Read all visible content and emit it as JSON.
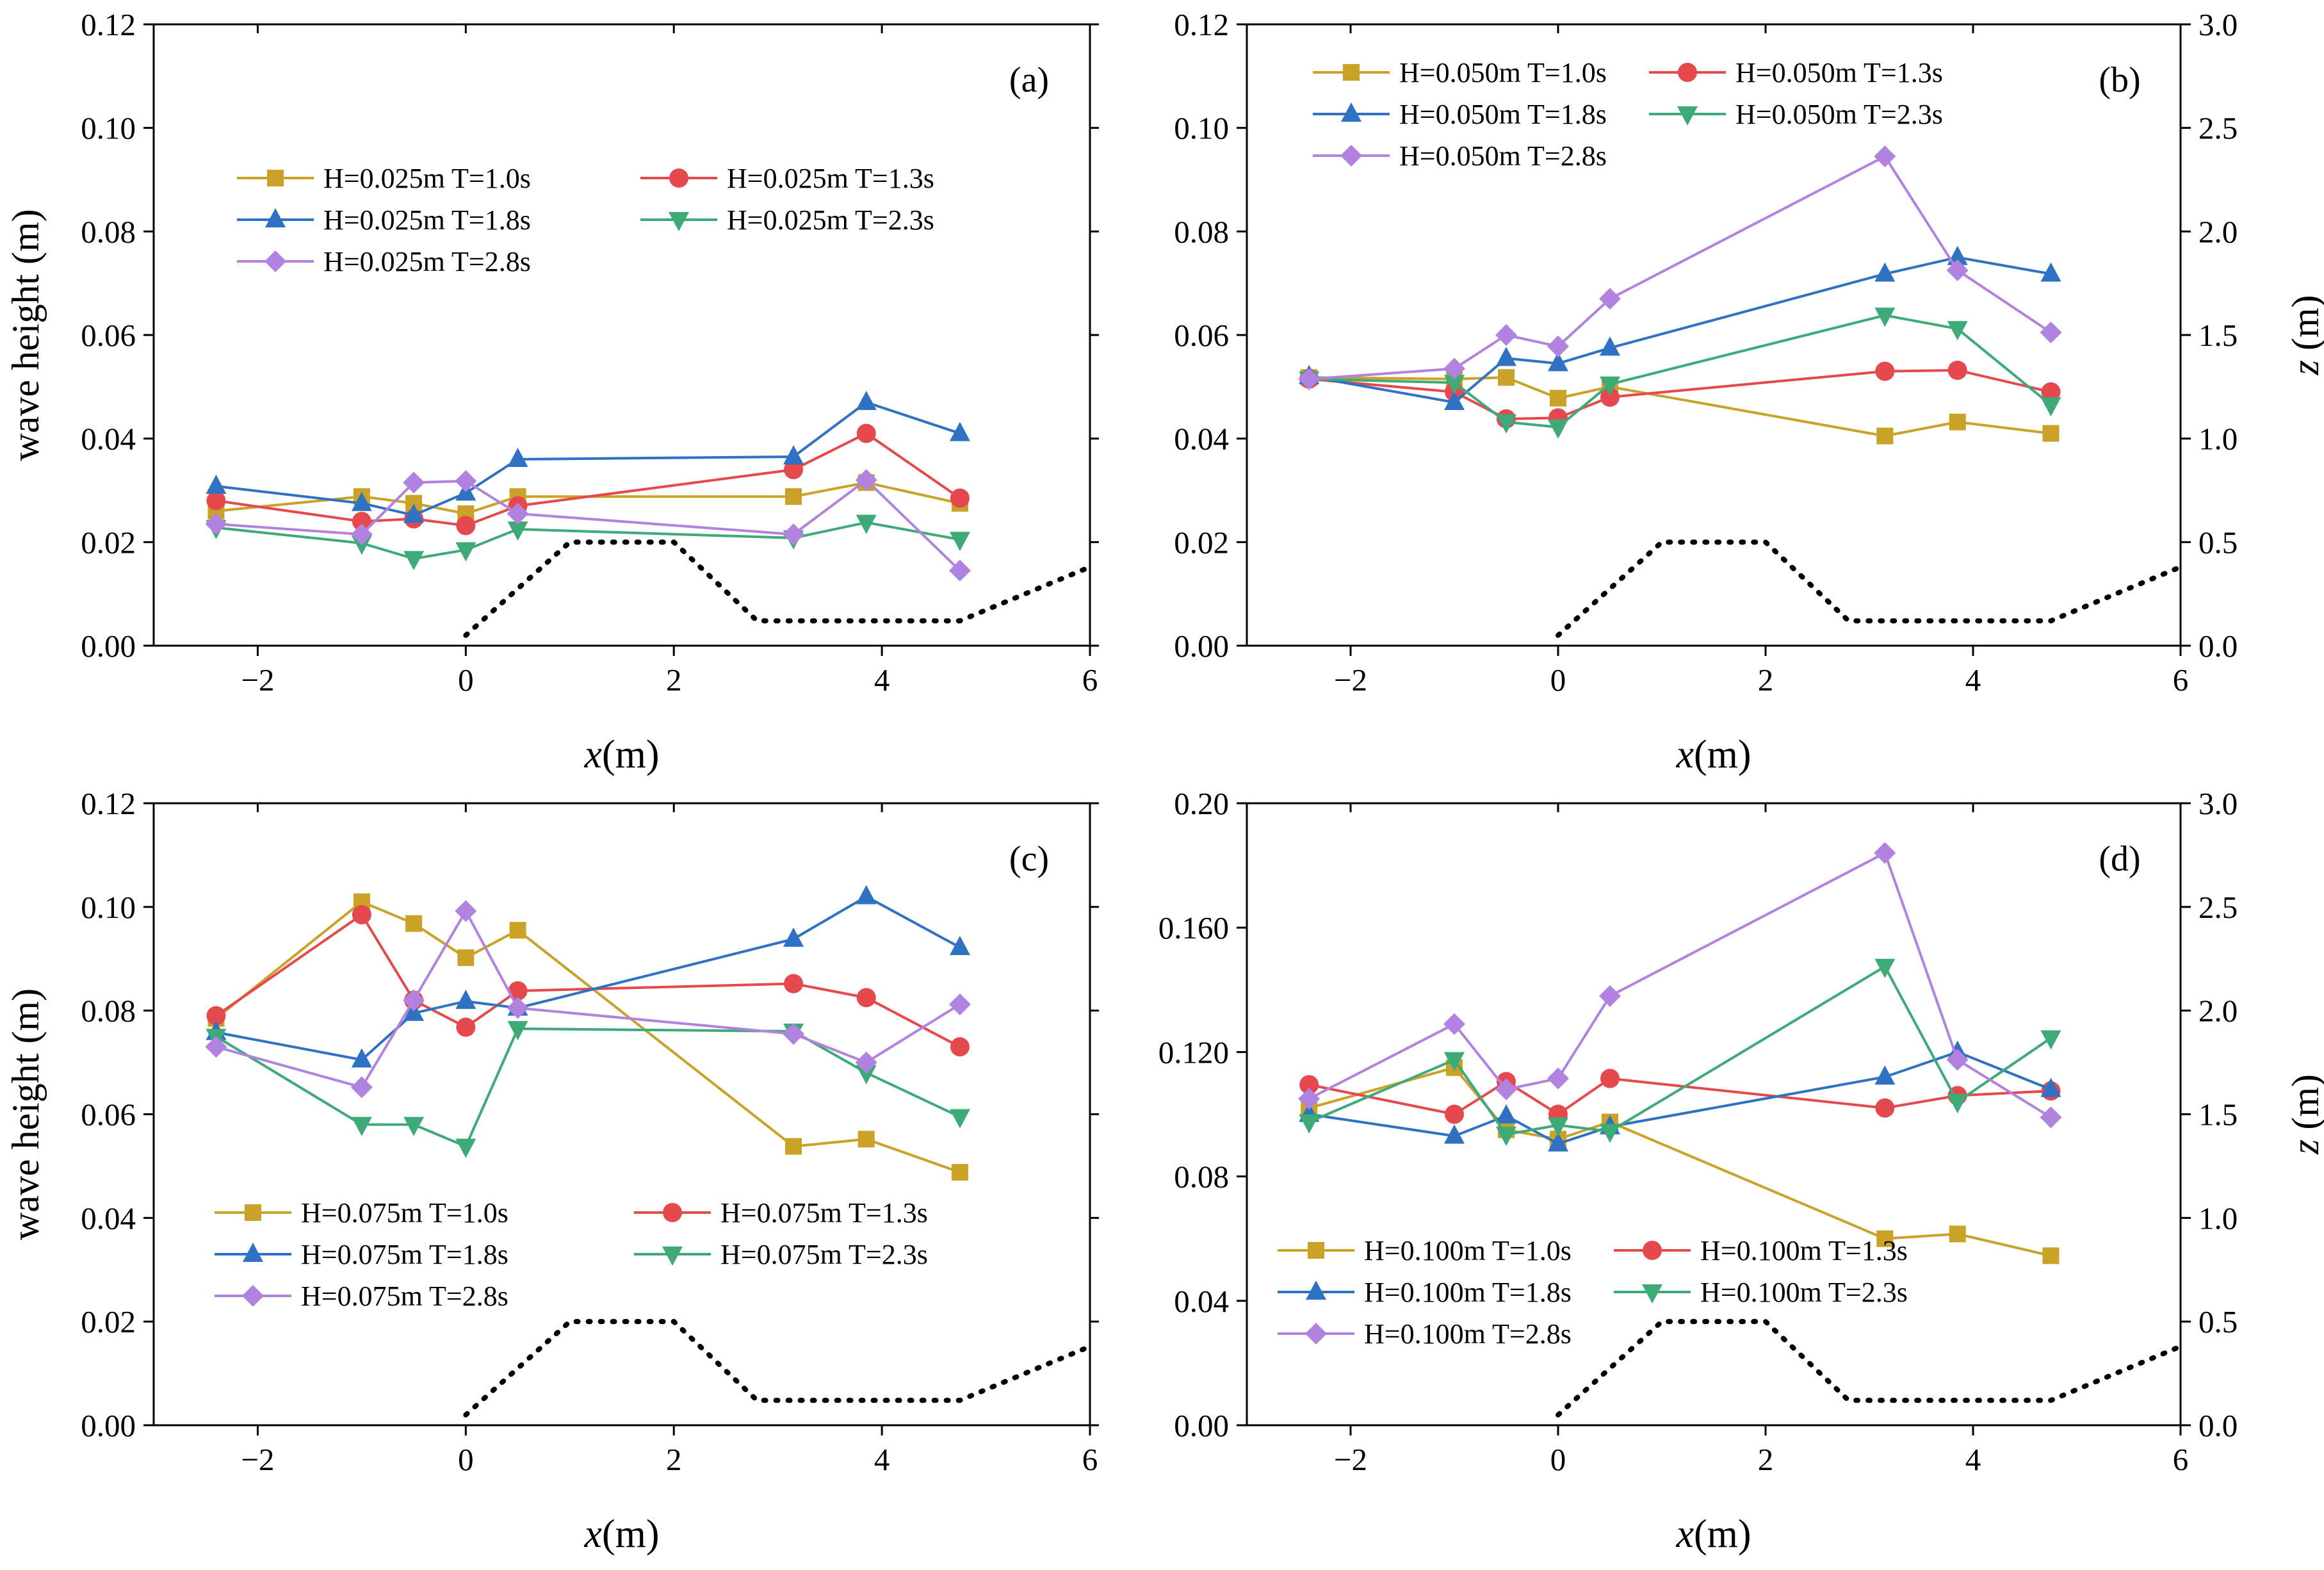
{
  "figure": {
    "x_symbol": "x",
    "x_unit": "(m)",
    "y_label": "wave height (m)",
    "z_symbol": "z",
    "z_unit": " (m)",
    "colors": {
      "T=1.0s": "#C9A227",
      "T=1.3s": "#E5484D",
      "T=1.8s": "#2F72C4",
      "T=2.3s": "#3DAA78",
      "T=2.8s": "#B282E0",
      "bathymetry": "#000000"
    }
  },
  "chart_data": [
    {
      "type": "line",
      "panel_label": "(a)",
      "x_tick_labels": [
        "−2",
        "0",
        "2",
        "4",
        "6"
      ],
      "xlim": [
        -3,
        6
      ],
      "ylim": [
        0,
        0.12
      ],
      "y_tick_labels": [
        "0.00",
        "0.02",
        "0.04",
        "0.06",
        "0.08",
        "0.10",
        "0.12"
      ],
      "right_axis": null,
      "legend_position": "upper-left",
      "series": [
        {
          "name": "H=0.025m T=1.0s",
          "marker": "square",
          "x": [
            -2.4,
            -1.0,
            -0.5,
            0.0,
            0.5,
            3.15,
            3.85,
            4.75
          ],
          "y": [
            0.026,
            0.0288,
            0.0275,
            0.0255,
            0.0288,
            0.0288,
            0.0315,
            0.0275
          ]
        },
        {
          "name": "H=0.025m T=1.3s",
          "marker": "circle",
          "x": [
            -2.4,
            -1.0,
            -0.5,
            0.0,
            0.5,
            3.15,
            3.85,
            4.75
          ],
          "y": [
            0.028,
            0.024,
            0.0245,
            0.0232,
            0.027,
            0.034,
            0.041,
            0.0285
          ]
        },
        {
          "name": "H=0.025m T=1.8s",
          "marker": "triangle-up",
          "x": [
            -2.4,
            -1.0,
            -0.5,
            0.0,
            0.5,
            3.15,
            3.85,
            4.75
          ],
          "y": [
            0.0308,
            0.0275,
            0.0252,
            0.0295,
            0.036,
            0.0365,
            0.047,
            0.041
          ]
        },
        {
          "name": "H=0.025m T=2.3s",
          "marker": "triangle-down",
          "x": [
            -2.4,
            -1.0,
            -0.5,
            0.0,
            0.5,
            3.15,
            3.85,
            4.75
          ],
          "y": [
            0.0228,
            0.0198,
            0.0168,
            0.0185,
            0.0225,
            0.0208,
            0.0238,
            0.0205
          ]
        },
        {
          "name": "H=0.025m T=2.8s",
          "marker": "diamond",
          "x": [
            -2.4,
            -1.0,
            -0.5,
            0.0,
            0.5,
            3.15,
            3.85,
            4.75
          ],
          "y": [
            0.0235,
            0.0215,
            0.0315,
            0.0318,
            0.0255,
            0.0215,
            0.032,
            0.0145
          ]
        }
      ]
    },
    {
      "type": "line",
      "panel_label": "(b)",
      "x_tick_labels": [
        "−2",
        "0",
        "2",
        "4",
        "6"
      ],
      "xlim": [
        -3,
        6
      ],
      "ylim": [
        0,
        0.12
      ],
      "y_tick_labels": [
        "0.00",
        "0.02",
        "0.04",
        "0.06",
        "0.08",
        "0.10",
        "0.12"
      ],
      "right_axis": {
        "label": "z (m)",
        "ylim": [
          0,
          3.0
        ],
        "tick_labels": [
          "0.0",
          "0.5",
          "1.0",
          "1.5",
          "2.0",
          "2.5",
          "3.0"
        ]
      },
      "legend_position": "top-left",
      "series": [
        {
          "name": "H=0.050m T=1.0s",
          "marker": "square",
          "x": [
            -2.4,
            -1.0,
            -0.5,
            0.0,
            0.5,
            3.15,
            3.85,
            4.75
          ],
          "y": [
            0.0518,
            0.0515,
            0.0518,
            0.0478,
            0.05,
            0.0405,
            0.0432,
            0.041
          ]
        },
        {
          "name": "H=0.050m T=1.3s",
          "marker": "circle",
          "x": [
            -2.4,
            -1.0,
            -0.5,
            0.0,
            0.5,
            3.15,
            3.85,
            4.75
          ],
          "y": [
            0.0515,
            0.049,
            0.0438,
            0.044,
            0.048,
            0.053,
            0.0532,
            0.049
          ]
        },
        {
          "name": "H=0.050m T=1.8s",
          "marker": "triangle-up",
          "x": [
            -2.4,
            -1.0,
            -0.5,
            0.0,
            0.5,
            3.15,
            3.85,
            4.75
          ],
          "y": [
            0.052,
            0.047,
            0.0555,
            0.0545,
            0.0575,
            0.0718,
            0.075,
            0.0718
          ]
        },
        {
          "name": "H=0.050m T=2.3s",
          "marker": "triangle-down",
          "x": [
            -2.4,
            -1.0,
            -0.5,
            0.0,
            0.5,
            3.15,
            3.85,
            4.75
          ],
          "y": [
            0.0515,
            0.0508,
            0.0432,
            0.0422,
            0.0505,
            0.0638,
            0.0612,
            0.0465
          ]
        },
        {
          "name": "H=0.050m T=2.8s",
          "marker": "diamond",
          "x": [
            -2.4,
            -1.0,
            -0.5,
            0.0,
            0.5,
            3.15,
            3.85,
            4.75
          ],
          "y": [
            0.0515,
            0.0535,
            0.06,
            0.0578,
            0.067,
            0.0945,
            0.0725,
            0.0605
          ]
        }
      ]
    },
    {
      "type": "line",
      "panel_label": "(c)",
      "x_tick_labels": [
        "−2",
        "0",
        "2",
        "4",
        "6"
      ],
      "xlim": [
        -3,
        6
      ],
      "ylim": [
        0,
        0.12
      ],
      "y_tick_labels": [
        "0.00",
        "0.02",
        "0.04",
        "0.06",
        "0.08",
        "0.10",
        "0.12"
      ],
      "right_axis": null,
      "legend_position": "lower-left",
      "series": [
        {
          "name": "H=0.075m T=1.0s",
          "marker": "square",
          "x": [
            -2.4,
            -1.0,
            -0.5,
            0.0,
            0.5,
            3.15,
            3.85,
            4.75
          ],
          "y": [
            0.0785,
            0.101,
            0.0968,
            0.0902,
            0.0955,
            0.0538,
            0.0552,
            0.0488
          ]
        },
        {
          "name": "H=0.075m T=1.3s",
          "marker": "circle",
          "x": [
            -2.4,
            -1.0,
            -0.5,
            0.0,
            0.5,
            3.15,
            3.85,
            4.75
          ],
          "y": [
            0.079,
            0.0985,
            0.082,
            0.0768,
            0.0838,
            0.0852,
            0.0825,
            0.073
          ]
        },
        {
          "name": "H=0.075m T=1.8s",
          "marker": "triangle-up",
          "x": [
            -2.4,
            -1.0,
            -0.5,
            0.0,
            0.5,
            3.15,
            3.85,
            4.75
          ],
          "y": [
            0.0758,
            0.0705,
            0.0795,
            0.0818,
            0.0805,
            0.0938,
            0.102,
            0.0922
          ]
        },
        {
          "name": "H=0.075m T=2.3s",
          "marker": "triangle-down",
          "x": [
            -2.4,
            -1.0,
            -0.5,
            0.0,
            0.5,
            3.15,
            3.85,
            4.75
          ],
          "y": [
            0.075,
            0.058,
            0.058,
            0.0538,
            0.0765,
            0.076,
            0.068,
            0.0595
          ]
        },
        {
          "name": "H=0.075m T=2.8s",
          "marker": "diamond",
          "x": [
            -2.4,
            -1.0,
            -0.5,
            0.0,
            0.5,
            3.15,
            3.85,
            4.75
          ],
          "y": [
            0.073,
            0.0652,
            0.082,
            0.0992,
            0.0805,
            0.0755,
            0.07,
            0.0812
          ]
        }
      ]
    },
    {
      "type": "line",
      "panel_label": "(d)",
      "x_tick_labels": [
        "−2",
        "0",
        "2",
        "4",
        "6"
      ],
      "xlim": [
        -3,
        6
      ],
      "ylim": [
        0,
        0.2
      ],
      "y_tick_labels": [
        "0.00",
        "0.04",
        "0.08",
        "0.120",
        "0.160",
        "0.20"
      ],
      "y_tick_values": [
        0,
        0.04,
        0.08,
        0.12,
        0.16,
        0.2
      ],
      "right_axis": {
        "label": "z (m)",
        "ylim": [
          0,
          3.0
        ],
        "tick_labels": [
          "0.0",
          "0.5",
          "1.0",
          "1.5",
          "2.0",
          "2.5",
          "3.0"
        ]
      },
      "legend_position": "lower-left",
      "series": [
        {
          "name": "H=0.100m T=1.0s",
          "marker": "square",
          "x": [
            -2.4,
            -1.0,
            -0.5,
            0.0,
            0.5,
            3.15,
            3.85,
            4.75
          ],
          "y": [
            0.102,
            0.115,
            0.095,
            0.092,
            0.0975,
            0.06,
            0.0615,
            0.0545
          ]
        },
        {
          "name": "H=0.100m T=1.3s",
          "marker": "circle",
          "x": [
            -2.4,
            -1.0,
            -0.5,
            0.0,
            0.5,
            3.15,
            3.85,
            4.75
          ],
          "y": [
            0.1095,
            0.1,
            0.1105,
            0.1,
            0.1115,
            0.102,
            0.106,
            0.1075
          ]
        },
        {
          "name": "H=0.100m T=1.8s",
          "marker": "triangle-up",
          "x": [
            -2.4,
            -1.0,
            -0.5,
            0.0,
            0.5,
            3.15,
            3.85,
            4.75
          ],
          "y": [
            0.1,
            0.093,
            0.0995,
            0.0905,
            0.096,
            0.112,
            0.12,
            0.108
          ]
        },
        {
          "name": "H=0.100m T=2.3s",
          "marker": "triangle-down",
          "x": [
            -2.4,
            -1.0,
            -0.5,
            0.0,
            0.5,
            3.15,
            3.85,
            4.75
          ],
          "y": [
            0.0975,
            0.1175,
            0.0935,
            0.0965,
            0.0945,
            0.1475,
            0.104,
            0.1245
          ]
        },
        {
          "name": "H=0.100m T=2.8s",
          "marker": "diamond",
          "x": [
            -2.4,
            -1.0,
            -0.5,
            0.0,
            0.5,
            3.15,
            3.85,
            4.75
          ],
          "y": [
            0.105,
            0.129,
            0.108,
            0.1115,
            0.138,
            0.184,
            0.1175,
            0.099
          ]
        }
      ]
    }
  ],
  "bathymetry": {
    "name": "bed profile z",
    "style": "dotted",
    "x": [
      0,
      1.0,
      2.0,
      2.8,
      4.75,
      6.0
    ],
    "z": [
      0.05,
      0.5,
      0.5,
      0.12,
      0.12,
      0.38
    ]
  }
}
